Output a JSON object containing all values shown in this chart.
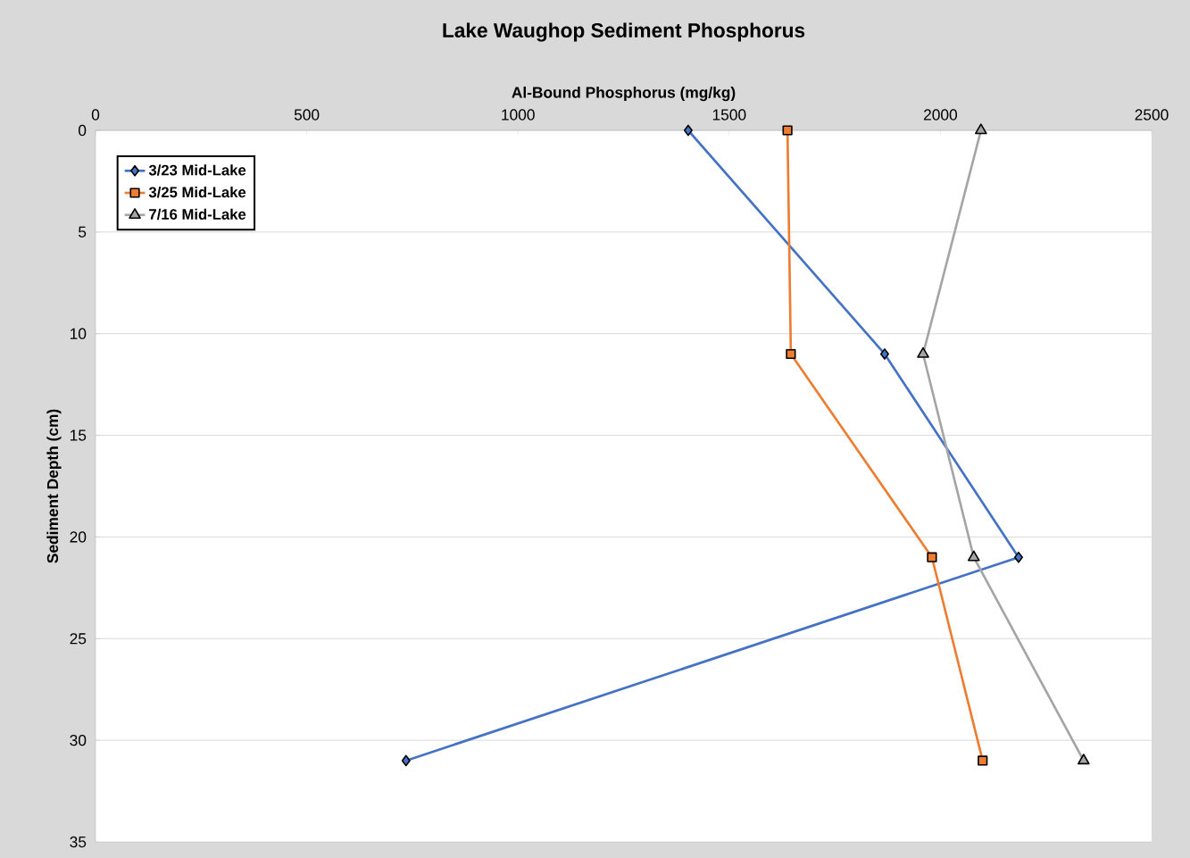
{
  "chart_data": {
    "type": "line",
    "title": "Lake Waughop Sediment Phosphorus",
    "xlabel": "Al-Bound Phosphorus (mg/kg)",
    "ylabel": "Sediment Depth (cm)",
    "xlim": [
      0,
      2500
    ],
    "xticks": [
      0,
      500,
      1000,
      1500,
      2000,
      2500
    ],
    "ylim": [
      35,
      0
    ],
    "yticks": [
      0,
      5,
      10,
      15,
      20,
      25,
      30,
      35
    ],
    "grid": "y",
    "legend": "top left",
    "line_style": "solid",
    "series": [
      {
        "name": "3/23 Mid-Lake",
        "color": "#4472c4",
        "marker": "diamond",
        "x": [
          1403,
          1868,
          2185,
          735
        ],
        "values": [
          0,
          11,
          21,
          31
        ]
      },
      {
        "name": "3/25 Mid-Lake",
        "color": "#ed7d31",
        "marker": "square",
        "x": [
          1638,
          1646,
          1980,
          2100
        ],
        "values": [
          0,
          11,
          21,
          31
        ]
      },
      {
        "name": "7/16 Mid-Lake",
        "color": "#a5a5a5",
        "marker": "triangle",
        "x": [
          2096,
          1959,
          2079,
          2339
        ],
        "values": [
          0,
          11,
          21,
          31
        ]
      }
    ]
  }
}
